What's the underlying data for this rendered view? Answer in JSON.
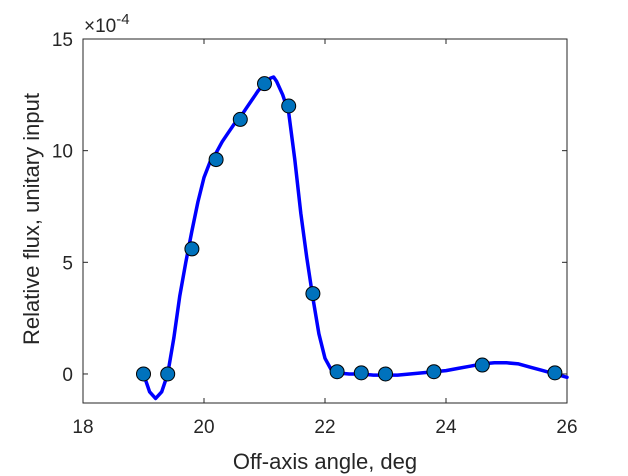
{
  "chart_data": {
    "type": "line",
    "title": "",
    "xlabel": "Off-axis angle, deg",
    "ylabel": "Relative flux, unitary input",
    "y_multiplier_label": "×10",
    "y_multiplier_exponent": "-4",
    "xlim": [
      18,
      26
    ],
    "ylim": [
      -1.3,
      15
    ],
    "x_ticks": [
      18,
      20,
      22,
      24,
      26
    ],
    "y_ticks": [
      0,
      5,
      10,
      15
    ],
    "grid": false,
    "legend": "none",
    "series": [
      {
        "style": "line",
        "color": "#0000ff",
        "x": [
          19.0,
          19.1,
          19.2,
          19.3,
          19.4,
          19.5,
          19.6,
          19.7,
          19.8,
          19.9,
          20.0,
          20.1,
          20.2,
          20.3,
          20.4,
          20.5,
          20.6,
          20.7,
          20.8,
          20.9,
          21.0,
          21.1,
          21.15,
          21.2,
          21.3,
          21.4,
          21.5,
          21.6,
          21.7,
          21.8,
          21.9,
          22.0,
          22.1,
          22.2,
          22.4,
          22.6,
          22.8,
          23.0,
          23.2,
          23.4,
          23.6,
          23.8,
          24.0,
          24.2,
          24.4,
          24.6,
          24.8,
          25.0,
          25.2,
          25.4,
          25.6,
          25.8,
          26.0
        ],
        "y": [
          0.0,
          -0.8,
          -1.1,
          -0.8,
          0.0,
          1.6,
          3.5,
          5.0,
          6.4,
          7.7,
          8.8,
          9.5,
          9.9,
          10.4,
          10.8,
          11.2,
          11.5,
          11.9,
          12.3,
          12.7,
          13.0,
          13.25,
          13.3,
          13.1,
          12.5,
          11.7,
          9.6,
          7.2,
          5.2,
          3.4,
          1.8,
          0.7,
          0.2,
          0.05,
          0.0,
          0.0,
          -0.05,
          -0.05,
          -0.05,
          0.0,
          0.05,
          0.1,
          0.15,
          0.25,
          0.35,
          0.45,
          0.5,
          0.5,
          0.45,
          0.3,
          0.15,
          0.0,
          -0.15
        ]
      },
      {
        "style": "markers",
        "marker_fill": "#0072bd",
        "marker_edge": "#000000",
        "x": [
          19.0,
          19.4,
          19.8,
          20.2,
          20.6,
          21.0,
          21.4,
          21.8,
          22.2,
          22.6,
          23.0,
          23.8,
          24.6,
          25.8
        ],
        "y": [
          0.0,
          0.0,
          5.6,
          9.6,
          11.4,
          13.0,
          12.0,
          3.6,
          0.1,
          0.05,
          0.0,
          0.1,
          0.4,
          0.05
        ]
      }
    ]
  }
}
